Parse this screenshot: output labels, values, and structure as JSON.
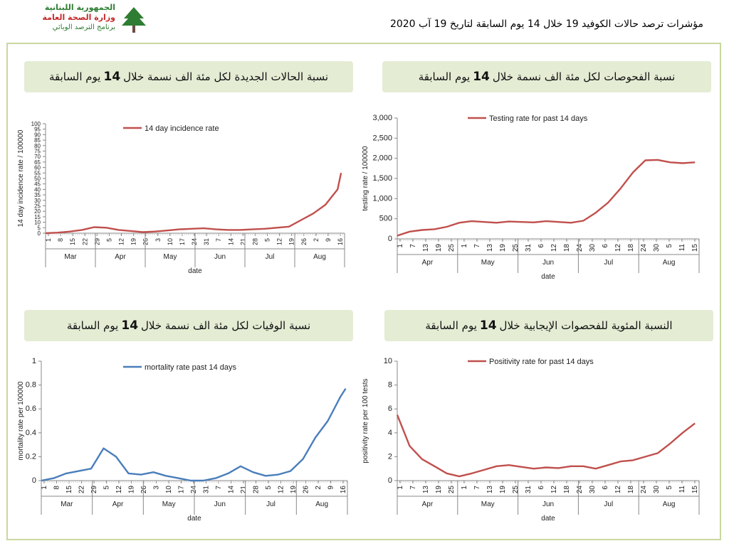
{
  "logo": {
    "line1": "الجمهورية اللبنانية",
    "line2": "وزارة الصحة العامة",
    "line3": "برنامج الترصد الوبائي"
  },
  "page_title": "مؤشرات ترصد حالات الكوفيد 19 خلال  14 يوم السابقة لتاريخ  19 آب 2020",
  "panels": {
    "incidence": {
      "header_pre": "نسبة الحالات الجديدة لكل مئة الف نسمة خلال",
      "header_num": "14",
      "header_post": "يوم السابقة"
    },
    "testing": {
      "header_pre": "نسبة الفحوصات لكل مئة الف نسمة خلال",
      "header_num": "14",
      "header_post": "يوم السابقة"
    },
    "mortality": {
      "header_pre": "نسبة الوفيات لكل مئة الف نسمة خلال",
      "header_num": "14",
      "header_post": "يوم السابقة"
    },
    "positivity": {
      "header_pre": "النسبة المئوية للفحصوات الإيجابية خلال",
      "header_num": "14",
      "header_post": "يوم السابقة"
    }
  },
  "colors": {
    "red_series": "#c0504d",
    "blue_series": "#4a7ebb",
    "header_bg": "#e4ecd4",
    "frame": "#c8d8a0"
  },
  "chart_data": [
    {
      "id": "incidence",
      "type": "line",
      "title": "",
      "ylabel": "14 day incidence rate / 100000",
      "xlabel": "date",
      "ylim": [
        0,
        100
      ],
      "yticks": [
        0,
        5,
        10,
        15,
        20,
        25,
        30,
        35,
        40,
        45,
        50,
        55,
        60,
        65,
        70,
        75,
        80,
        85,
        90,
        95,
        100
      ],
      "xticks": [
        "1",
        "8",
        "15",
        "22",
        "29",
        "5",
        "12",
        "19",
        "26",
        "3",
        "10",
        "17",
        "24",
        "31",
        "7",
        "14",
        "21",
        "28",
        "5",
        "12",
        "19",
        "26",
        "2",
        "9",
        "16"
      ],
      "months": [
        "Mar",
        "Apr",
        "May",
        "Jun",
        "Jul",
        "Aug"
      ],
      "legend_position": "top",
      "series": [
        {
          "name": "14 day incidence rate",
          "color": "#c0504d",
          "x": [
            0,
            7,
            14,
            21,
            28,
            35,
            42,
            49,
            56,
            63,
            70,
            77,
            84,
            91,
            98,
            105,
            112,
            119,
            126,
            133,
            140,
            147,
            154,
            161,
            168,
            170
          ],
          "y": [
            0,
            0.5,
            1.5,
            3,
            5.5,
            5,
            3,
            2,
            1,
            1.5,
            2.5,
            3.5,
            4,
            4.5,
            3.5,
            3,
            3,
            3.5,
            4,
            5,
            6,
            12,
            18,
            26,
            40,
            55
          ]
        }
      ]
    },
    {
      "id": "testing",
      "type": "line",
      "title": "",
      "ylabel": "testing rate / 100000",
      "xlabel": "date",
      "ylim": [
        0,
        3000
      ],
      "yticks": [
        "0",
        "500",
        "1,000",
        "1,500",
        "2,000",
        "2,500",
        "3,000"
      ],
      "xticks": [
        "1",
        "7",
        "13",
        "19",
        "25",
        "1",
        "7",
        "13",
        "19",
        "25",
        "31",
        "6",
        "12",
        "18",
        "24",
        "30",
        "6",
        "12",
        "18",
        "24",
        "30",
        "5",
        "11",
        "15"
      ],
      "months": [
        "Apr",
        "May",
        "Jun",
        "Jul",
        "Aug"
      ],
      "legend_position": "top",
      "series": [
        {
          "name": "Testing rate for past 14 days",
          "color": "#c0504d",
          "x": [
            0,
            6,
            12,
            18,
            24,
            30,
            36,
            42,
            48,
            54,
            60,
            66,
            72,
            78,
            84,
            90,
            96,
            102,
            108,
            114,
            120,
            126,
            132,
            138,
            144
          ],
          "y": [
            80,
            180,
            220,
            240,
            300,
            400,
            440,
            420,
            400,
            430,
            420,
            410,
            440,
            420,
            400,
            450,
            650,
            900,
            1250,
            1650,
            1950,
            1960,
            1900,
            1880,
            1900
          ]
        }
      ]
    },
    {
      "id": "mortality",
      "type": "line",
      "title": "",
      "ylabel": "mortality rate per 100000",
      "xlabel": "date",
      "ylim": [
        0,
        1
      ],
      "yticks": [
        "0",
        "0.2",
        "0.4",
        "0.6",
        "0.8",
        "1"
      ],
      "xticks": [
        "1",
        "8",
        "15",
        "22",
        "29",
        "5",
        "12",
        "19",
        "26",
        "3",
        "10",
        "17",
        "24",
        "31",
        "7",
        "14",
        "21",
        "28",
        "5",
        "12",
        "19",
        "26",
        "2",
        "9",
        "16"
      ],
      "months": [
        "Mar",
        "Apr",
        "May",
        "Jun",
        "Jul",
        "Aug"
      ],
      "legend_position": "top",
      "series": [
        {
          "name": "mortality rate past 14 days",
          "color": "#4a7ebb",
          "x": [
            0,
            7,
            14,
            21,
            28,
            35,
            42,
            49,
            56,
            63,
            70,
            77,
            84,
            91,
            98,
            105,
            112,
            119,
            126,
            133,
            140,
            147,
            154,
            161,
            168,
            171
          ],
          "y": [
            0,
            0.02,
            0.06,
            0.08,
            0.1,
            0.27,
            0.2,
            0.06,
            0.05,
            0.07,
            0.04,
            0.02,
            0,
            0,
            0.02,
            0.06,
            0.12,
            0.07,
            0.04,
            0.05,
            0.08,
            0.18,
            0.36,
            0.5,
            0.7,
            0.77
          ]
        }
      ]
    },
    {
      "id": "positivity",
      "type": "line",
      "title": "",
      "ylabel": "positivity rate per 100 tests",
      "xlabel": "date",
      "ylim": [
        0,
        10
      ],
      "yticks": [
        "0",
        "2",
        "4",
        "6",
        "8",
        "10"
      ],
      "xticks": [
        "1",
        "7",
        "13",
        "19",
        "25",
        "1",
        "7",
        "13",
        "19",
        "25",
        "31",
        "6",
        "12",
        "18",
        "24",
        "30",
        "6",
        "12",
        "18",
        "24",
        "30",
        "5",
        "11",
        "15"
      ],
      "months": [
        "Apr",
        "May",
        "Jun",
        "Jul",
        "Aug"
      ],
      "legend_position": "top",
      "series": [
        {
          "name": "Positivity rate for past 14 days",
          "color": "#c0504d",
          "x": [
            0,
            6,
            12,
            18,
            24,
            30,
            36,
            42,
            48,
            54,
            60,
            66,
            72,
            78,
            84,
            90,
            96,
            102,
            108,
            114,
            120,
            126,
            132,
            138,
            144
          ],
          "y": [
            5.5,
            2.9,
            1.8,
            1.2,
            0.6,
            0.35,
            0.6,
            0.9,
            1.2,
            1.3,
            1.15,
            1.0,
            1.1,
            1.05,
            1.2,
            1.2,
            1.0,
            1.3,
            1.6,
            1.7,
            2.0,
            2.3,
            3.1,
            4.0,
            4.8
          ]
        }
      ]
    }
  ]
}
